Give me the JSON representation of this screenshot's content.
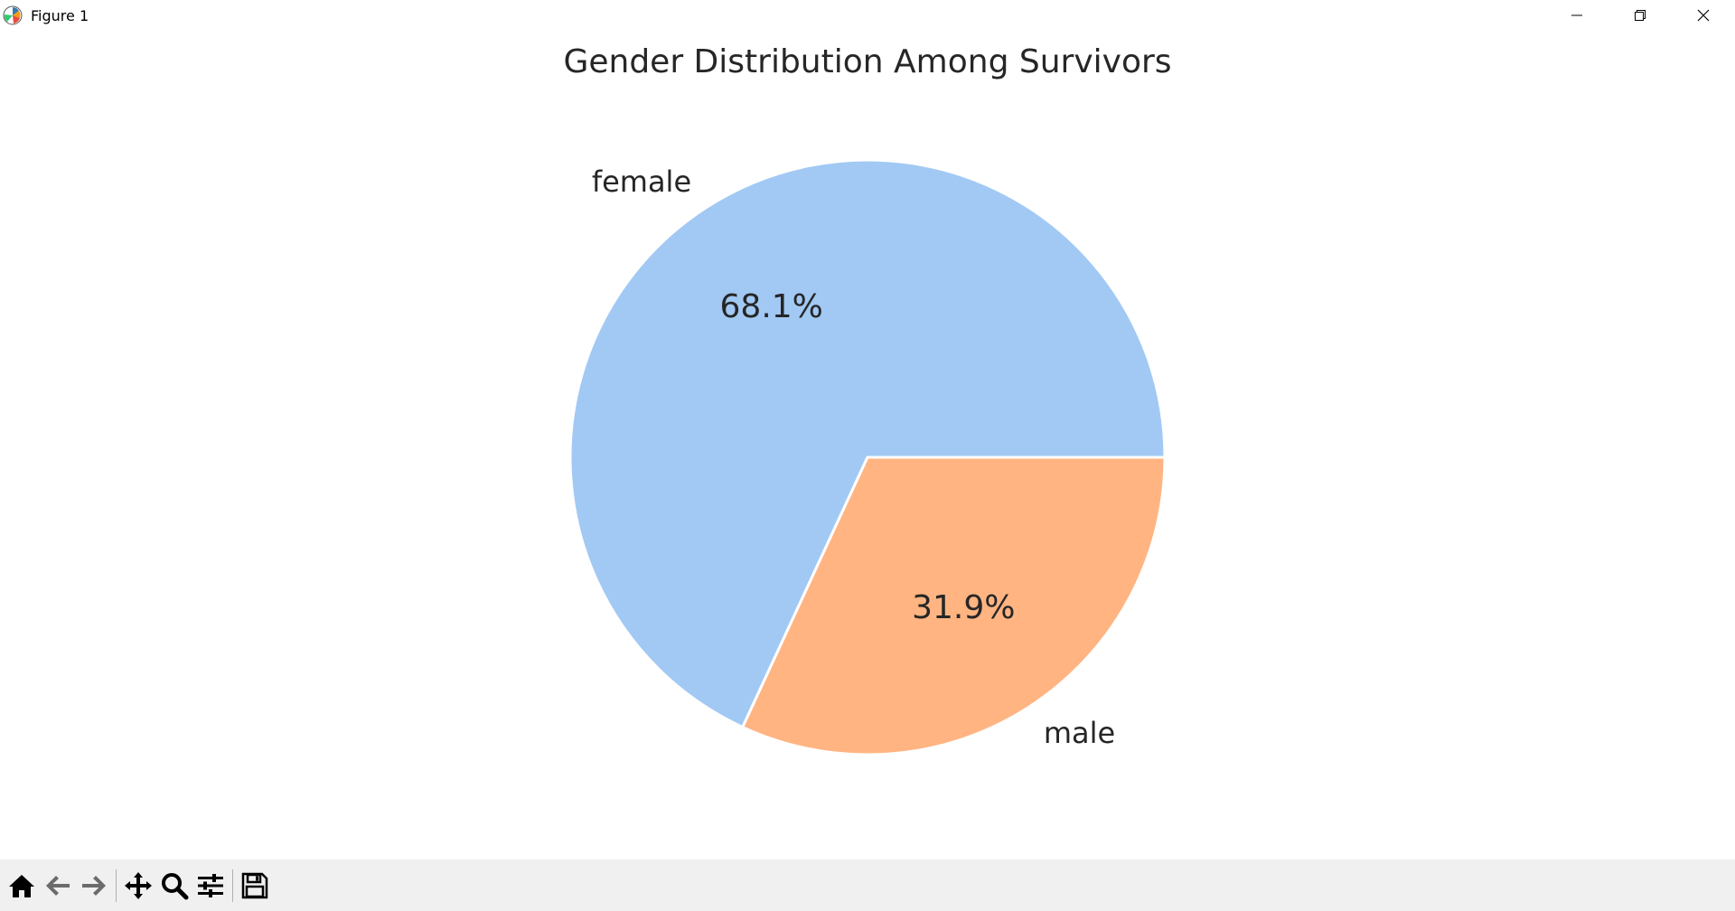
{
  "window": {
    "title": "Figure 1",
    "controls": [
      "minimize-icon",
      "restore-icon",
      "close-icon"
    ]
  },
  "toolbar": {
    "buttons": [
      "home-icon",
      "back-icon",
      "forward-icon",
      "pan-icon",
      "zoom-icon",
      "configure-subplots-icon",
      "save-icon"
    ]
  },
  "chart_data": {
    "type": "pie",
    "title": "Gender Distribution Among Survivors",
    "categories": [
      "female",
      "male"
    ],
    "values": [
      68.1,
      31.9
    ],
    "labels": [
      "68.1%",
      "31.9%"
    ],
    "colors": [
      "#a1c9f4",
      "#ffb482"
    ],
    "start_angle": 0,
    "direction": "counterclockwise",
    "legend": "none"
  }
}
